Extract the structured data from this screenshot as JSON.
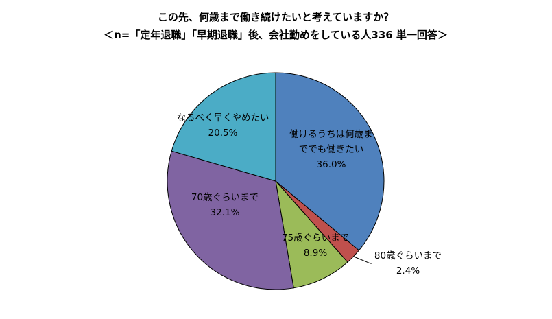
{
  "chart_data": {
    "type": "pie",
    "title": "この先、何歳まで働き続けたいと考えていますか？",
    "subtitle": "＜n=「定年退職」「早期退職」後、会社勤めをしている人336 単一回答＞",
    "slices": [
      {
        "label_lines": [
          "働けるうちは何歳ま",
          "ででも働きたい"
        ],
        "value": 36.0,
        "value_label": "36.0%",
        "color": "#4F81BD"
      },
      {
        "label_lines": [
          "80歳ぐらいまで"
        ],
        "value": 2.4,
        "value_label": "2.4%",
        "color": "#C0504D"
      },
      {
        "label_lines": [
          "75歳ぐらいまで"
        ],
        "value": 8.9,
        "value_label": "8.9%",
        "color": "#9BBB59"
      },
      {
        "label_lines": [
          "70歳ぐらいまで"
        ],
        "value": 32.1,
        "value_label": "32.1%",
        "color": "#8064A2"
      },
      {
        "label_lines": [
          "なるべく早くやめたい"
        ],
        "value": 20.5,
        "value_label": "20.5%",
        "color": "#4BACC6"
      }
    ],
    "start_angle_deg": 0,
    "direction": "clockwise"
  }
}
